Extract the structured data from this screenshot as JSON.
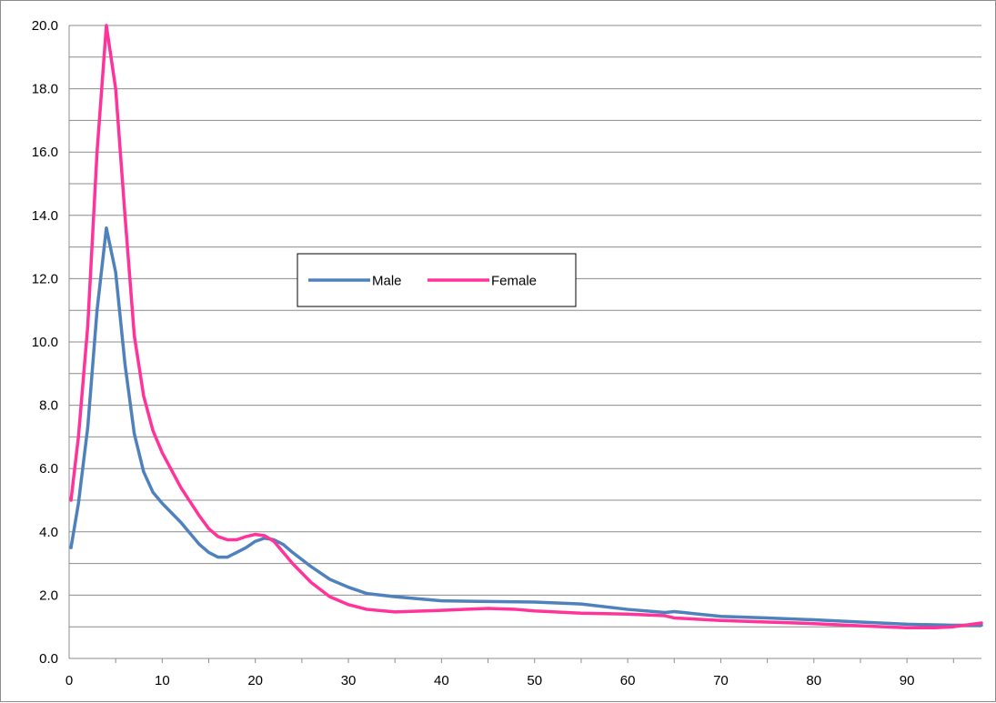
{
  "chart_data": {
    "type": "line",
    "title": "",
    "xlabel": "",
    "ylabel": "",
    "xlim": [
      0,
      98
    ],
    "ylim": [
      0,
      20
    ],
    "y_minor_step": 1,
    "y_tick_labels": [
      "0.0",
      "2.0",
      "4.0",
      "6.0",
      "8.0",
      "10.0",
      "12.0",
      "14.0",
      "16.0",
      "18.0",
      "20.0"
    ],
    "x_tick_labels": [
      "0",
      "10",
      "20",
      "30",
      "40",
      "50",
      "60",
      "70",
      "80",
      "90"
    ],
    "grid": true,
    "legend_placement": "center-left",
    "series": [
      {
        "name": "Male",
        "color": "#4F81BD",
        "points": [
          [
            0.2,
            3.5
          ],
          [
            1,
            4.9
          ],
          [
            2,
            7.3
          ],
          [
            3,
            11.0
          ],
          [
            4,
            13.6
          ],
          [
            5,
            12.2
          ],
          [
            6,
            9.3
          ],
          [
            7,
            7.1
          ],
          [
            8,
            5.9
          ],
          [
            9,
            5.25
          ],
          [
            10,
            4.9
          ],
          [
            12,
            4.3
          ],
          [
            14,
            3.6
          ],
          [
            15,
            3.35
          ],
          [
            16,
            3.2
          ],
          [
            17,
            3.2
          ],
          [
            18,
            3.35
          ],
          [
            19,
            3.5
          ],
          [
            20,
            3.7
          ],
          [
            21,
            3.8
          ],
          [
            22,
            3.75
          ],
          [
            23,
            3.6
          ],
          [
            24,
            3.35
          ],
          [
            26,
            2.9
          ],
          [
            28,
            2.5
          ],
          [
            30,
            2.25
          ],
          [
            32,
            2.05
          ],
          [
            35,
            1.95
          ],
          [
            40,
            1.82
          ],
          [
            45,
            1.8
          ],
          [
            50,
            1.78
          ],
          [
            55,
            1.72
          ],
          [
            60,
            1.55
          ],
          [
            64,
            1.45
          ],
          [
            65,
            1.48
          ],
          [
            66,
            1.45
          ],
          [
            70,
            1.33
          ],
          [
            75,
            1.28
          ],
          [
            80,
            1.22
          ],
          [
            85,
            1.15
          ],
          [
            90,
            1.08
          ],
          [
            95,
            1.05
          ],
          [
            98,
            1.05
          ]
        ]
      },
      {
        "name": "Female",
        "color": "#FF3399",
        "points": [
          [
            0.2,
            5.0
          ],
          [
            1,
            7.0
          ],
          [
            2,
            10.5
          ],
          [
            3,
            16.0
          ],
          [
            4,
            20.0
          ],
          [
            5,
            18.0
          ],
          [
            6,
            14.0
          ],
          [
            7,
            10.2
          ],
          [
            8,
            8.3
          ],
          [
            9,
            7.2
          ],
          [
            10,
            6.5
          ],
          [
            12,
            5.4
          ],
          [
            14,
            4.5
          ],
          [
            15,
            4.1
          ],
          [
            16,
            3.85
          ],
          [
            17,
            3.75
          ],
          [
            18,
            3.75
          ],
          [
            19,
            3.85
          ],
          [
            20,
            3.92
          ],
          [
            21,
            3.88
          ],
          [
            22,
            3.7
          ],
          [
            23,
            3.35
          ],
          [
            24,
            3.0
          ],
          [
            26,
            2.4
          ],
          [
            28,
            1.95
          ],
          [
            30,
            1.7
          ],
          [
            32,
            1.55
          ],
          [
            35,
            1.47
          ],
          [
            40,
            1.52
          ],
          [
            45,
            1.58
          ],
          [
            48,
            1.55
          ],
          [
            50,
            1.5
          ],
          [
            55,
            1.43
          ],
          [
            60,
            1.4
          ],
          [
            64,
            1.35
          ],
          [
            65,
            1.28
          ],
          [
            70,
            1.2
          ],
          [
            75,
            1.15
          ],
          [
            80,
            1.1
          ],
          [
            85,
            1.03
          ],
          [
            90,
            0.97
          ],
          [
            93,
            0.97
          ],
          [
            95,
            1.0
          ],
          [
            97,
            1.08
          ],
          [
            98,
            1.12
          ]
        ]
      }
    ]
  }
}
